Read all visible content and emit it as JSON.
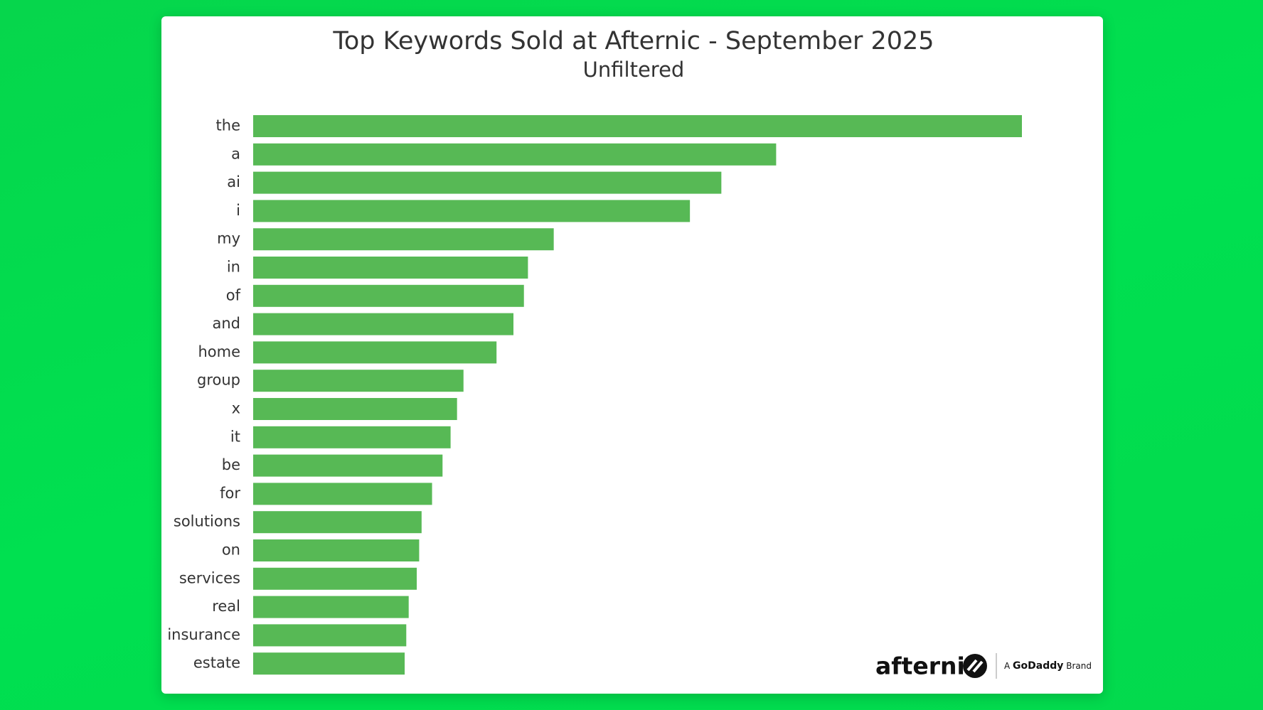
{
  "chart_data": {
    "type": "barh",
    "title": "Top Keywords Sold at Afternic - September 2025",
    "subtitle": "Unfiltered",
    "categories": [
      "the",
      "a",
      "ai",
      "i",
      "my",
      "in",
      "of",
      "and",
      "home",
      "group",
      "x",
      "it",
      "be",
      "for",
      "solutions",
      "on",
      "services",
      "real",
      "insurance",
      "estate"
    ],
    "values": [
      954,
      649,
      581,
      542,
      373,
      341,
      336,
      323,
      302,
      261,
      253,
      245,
      235,
      222,
      209,
      206,
      203,
      193,
      190,
      188
    ],
    "color": "#57b955"
  },
  "branding": {
    "name": "afternic",
    "tagline_prefix": "A",
    "tagline_brand": "GoDaddy",
    "tagline_suffix": "Brand"
  }
}
